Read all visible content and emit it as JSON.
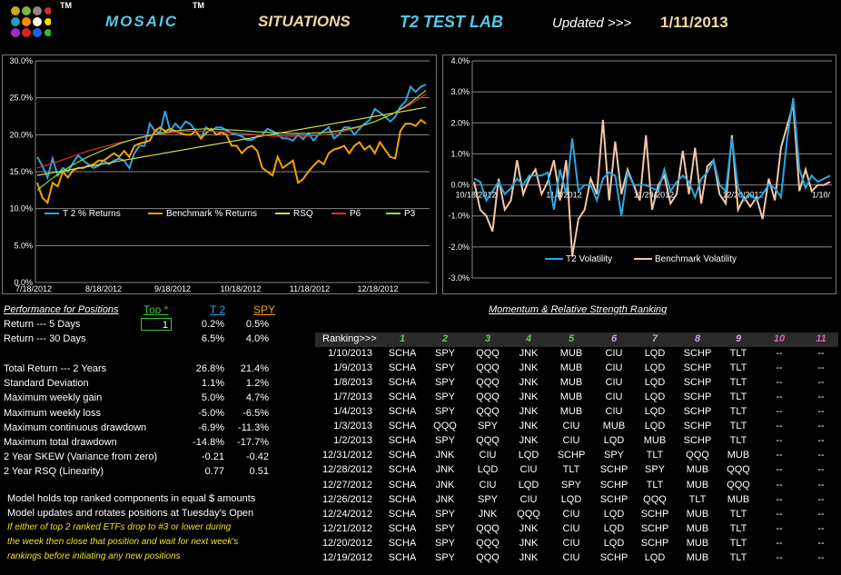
{
  "header": {
    "logo_tm": "TM",
    "title": "MOSAIC",
    "title_tm": "TM",
    "situations": "SITUATIONS",
    "lab": "T2 TEST LAB",
    "updated_label": "Updated >>>",
    "updated_date": "1/11/2013"
  },
  "colors": {
    "t2": "#29a8e0",
    "benchmark": "#f4a300",
    "rsq": "#d8d84a",
    "p6": "#e03030",
    "p3": "#90e040",
    "t2_vol": "#29a8e0",
    "bench_vol": "#f2c8a8",
    "title_mosaic": "#55c8e8",
    "title_situations": "#f5d8a0",
    "title_lab": "#55c8e8",
    "updated_date": "#f5d8a0"
  },
  "chart_data": [
    {
      "type": "line",
      "ylim": [
        0,
        30
      ],
      "yticks": [
        "0.0%",
        "5.0%",
        "10.0%",
        "15.0%",
        "20.0%",
        "25.0%",
        "30.0%"
      ],
      "xticks": [
        "7/18/2012",
        "8/18/2012",
        "9/18/2012",
        "10/18/2012",
        "11/18/2012",
        "12/18/2012"
      ],
      "grid": true,
      "legend": "bottom",
      "series": [
        {
          "name": "T 2 % Returns",
          "values": [
            17,
            15.8,
            14.2,
            16.8,
            14.5,
            15.5,
            15,
            16.2,
            17.2,
            16.5,
            16,
            15.5,
            15.8,
            16.5,
            16,
            16.5,
            16.8,
            16.5,
            15.5,
            17.5,
            18.5,
            18.5,
            21.5,
            20.5,
            20.3,
            23.2,
            20.5,
            21.5,
            20.8,
            21.8,
            21.4,
            20.5,
            19.5,
            21,
            20.5,
            21,
            21,
            20.6,
            20.2,
            20,
            19.8,
            19.3,
            19.3,
            19.8,
            20,
            20.8,
            20.5,
            20,
            19.5,
            19.5,
            19.2,
            20,
            19.4,
            20.2,
            19.2,
            20,
            20.5,
            21,
            19.5,
            20,
            21,
            21,
            20,
            20.8,
            21.5,
            22,
            23.5,
            23,
            22.5,
            21.8,
            22.4,
            23.8,
            24.5,
            26.5,
            25.8,
            26.5,
            26.8
          ]
        },
        {
          "name": "Benchmark % Returns",
          "values": [
            13.5,
            11.5,
            10.8,
            13.5,
            13,
            15,
            14.2,
            15.2,
            15.5,
            15.5,
            15.8,
            16,
            16.5,
            16.5,
            17,
            17.5,
            17,
            17.8,
            17,
            18.5,
            18.8,
            19,
            19.2,
            20.5,
            21,
            20.5,
            20.8,
            20.5,
            20.2,
            20,
            20,
            20.5,
            19.5,
            20.2,
            20.8,
            20,
            20.3,
            20,
            18.5,
            18.5,
            17.5,
            18.2,
            18.5,
            17.8,
            15.5,
            15,
            14.5,
            17,
            15.5,
            16,
            16.5,
            13.5,
            14,
            15,
            15.8,
            16.5,
            16,
            17.5,
            18,
            18.2,
            18.5,
            17.5,
            18.5,
            19,
            18,
            18.5,
            17.5,
            19,
            18,
            17,
            16.8,
            20.5,
            21.5,
            21.5,
            21.2,
            22,
            21.5
          ]
        },
        {
          "name": "RSQ",
          "values": [
            14.5,
            14.9,
            15.3,
            15.7,
            16.1,
            16.5,
            16.9,
            17.3,
            17.7,
            18.1,
            18.5,
            18.9,
            19.3,
            19.7,
            20.1,
            20.5,
            20.9,
            21.3,
            21.7,
            22.1,
            22.5,
            22.9,
            23.3,
            23.7
          ]
        },
        {
          "name": "P6",
          "values": [
            15.5,
            16.2,
            17,
            17.8,
            18.4,
            19,
            19.5,
            20,
            20.3,
            20.5,
            20.5,
            20.4,
            20.2,
            20,
            19.8,
            19.8,
            19.8,
            20,
            20.4,
            21,
            21.8,
            22.8,
            24,
            25.5
          ]
        },
        {
          "name": "P3",
          "values": [
            12.5,
            14.3,
            15.8,
            17,
            18,
            18.9,
            19.6,
            20.1,
            20.5,
            20.7,
            20.8,
            20.7,
            20.6,
            20.4,
            20.3,
            20.2,
            20.2,
            20.3,
            20.6,
            21.1,
            21.8,
            22.8,
            24.2,
            26
          ]
        }
      ]
    },
    {
      "type": "line",
      "ylim": [
        -3,
        4
      ],
      "yticks": [
        "-3.0%",
        "-2.0%",
        "-1.0%",
        "0.0%",
        "1.0%",
        "2.0%",
        "3.0%",
        "4.0%"
      ],
      "xticks": [
        "10/18/2012",
        "11/8/2012",
        "11/29/2012",
        "12/20/2012",
        "1/10/"
      ],
      "grid": true,
      "legend": "bottom",
      "series": [
        {
          "name": "T2 Volatility",
          "values": [
            0.2,
            0.1,
            -0.5,
            -0.2,
            0.1,
            -0.3,
            -0.1,
            0.2,
            0,
            0.3,
            0.3,
            0.3,
            0.4,
            -0.8,
            0.5,
            -0.3,
            1.5,
            -0.2,
            0,
            0,
            -0.5,
            0.2,
            0.4,
            0.3,
            -1,
            0.4,
            0,
            0,
            0,
            -0.1,
            -0.2,
            0.5,
            -0.2,
            0.1,
            0.3,
            0.1,
            -0.4,
            0.2,
            0.4,
            0.8,
            0,
            -0.2,
            1.5,
            -0.1,
            -0.5,
            -0.3,
            -0.5,
            -0.3,
            0,
            -0.1,
            -0.4,
            1.5,
            2.8,
            0.5,
            -0.1,
            0.3,
            0.1,
            0.2,
            0.3
          ]
        },
        {
          "name": "Benchmark Volatility",
          "values": [
            0.1,
            -0.8,
            -1,
            -1.5,
            0.2,
            -0.8,
            -0.5,
            0.8,
            -0.3,
            0.2,
            0.5,
            -0.3,
            0.1,
            0.8,
            -0.5,
            0.8,
            -2.3,
            -1.1,
            -0.8,
            0.2,
            -0.3,
            2.1,
            -0.5,
            1.4,
            -0.3,
            0.5,
            0,
            -0.5,
            1.6,
            -0.8,
            0,
            0.3,
            -0.6,
            -0.3,
            1.1,
            -0.3,
            1.2,
            -0.6,
            0.6,
            0.8,
            -0.3,
            -0.6,
            1.6,
            -0.8,
            -0.4,
            -0.7,
            -0.4,
            -1.1,
            0.2,
            -0.5,
            1.2,
            1.9,
            2.6,
            -0.2,
            0.5,
            -0.2,
            0,
            0,
            0.1
          ]
        }
      ]
    }
  ],
  "performance": {
    "heading": "Performance for Positions",
    "top_label": "Top *",
    "t2_label": "T 2",
    "spy_label": "SPY",
    "top_value": "1",
    "rows_short": [
      {
        "label": "Return --- 5 Days",
        "t2": "0.2%",
        "spy": "0.5%"
      },
      {
        "label": "Return --- 30 Days",
        "t2": "6.5%",
        "spy": "4.0%"
      }
    ],
    "rows": [
      {
        "label": "Total Return --- 2 Years",
        "t2": "26.8%",
        "spy": "21.4%"
      },
      {
        "label": "Standard Deviation",
        "t2": "1.1%",
        "spy": "1.2%"
      },
      {
        "label": "Maximum weekly gain",
        "t2": "5.0%",
        "spy": "4.7%"
      },
      {
        "label": "Maximum weekly loss",
        "t2": "-5.0%",
        "spy": "-6.5%"
      },
      {
        "label": "Maximum continuous drawdown",
        "t2": "-6.9%",
        "spy": "-11.3%"
      },
      {
        "label": "Maximum total drawdown",
        "t2": "-14.8%",
        "spy": "-17.7%"
      },
      {
        "label": "2 Year SKEW  (Variance from zero)",
        "t2": "-0.21",
        "spy": "-0.42"
      },
      {
        "label": "2 Year RSQ  (Linearity)",
        "t2": "0.77",
        "spy": "0.51"
      }
    ],
    "notes": [
      "Model holds top ranked  components in equal  $ amounts",
      "Model updates and rotates positions at Tuesday's Open"
    ],
    "warnings": [
      "If either of top 2 ranked ETFs drop to #3 or lower during",
      "the week then close that position and wait for next week's",
      "rankings before initiating any new positions"
    ]
  },
  "ranking": {
    "heading": "Momentum & Relative Strength Ranking",
    "label": "Ranking>>>",
    "columns": [
      "1",
      "2",
      "3",
      "4",
      "5",
      "6",
      "7",
      "8",
      "9",
      "10",
      "11"
    ],
    "column_colors": [
      "#5ec85e",
      "#5ec85e",
      "#5ec85e",
      "#5ec85e",
      "#5ec85e",
      "#c8a0e8",
      "#c8a0e8",
      "#c8a0e8",
      "#c8a0e8",
      "#e060b0",
      "#e060b0"
    ],
    "rows": [
      {
        "date": "1/10/2013",
        "cells": [
          "SCHA",
          "SPY",
          "QQQ",
          "JNK",
          "MUB",
          "CIU",
          "LQD",
          "SCHP",
          "TLT",
          "--",
          "--"
        ]
      },
      {
        "date": "1/9/2013",
        "cells": [
          "SCHA",
          "SPY",
          "QQQ",
          "JNK",
          "MUB",
          "CIU",
          "LQD",
          "SCHP",
          "TLT",
          "--",
          "--"
        ]
      },
      {
        "date": "1/8/2013",
        "cells": [
          "SCHA",
          "SPY",
          "QQQ",
          "JNK",
          "MUB",
          "CIU",
          "LQD",
          "SCHP",
          "TLT",
          "--",
          "--"
        ]
      },
      {
        "date": "1/7/2013",
        "cells": [
          "SCHA",
          "SPY",
          "QQQ",
          "JNK",
          "MUB",
          "CIU",
          "LQD",
          "SCHP",
          "TLT",
          "--",
          "--"
        ]
      },
      {
        "date": "1/4/2013",
        "cells": [
          "SCHA",
          "SPY",
          "QQQ",
          "JNK",
          "MUB",
          "CIU",
          "LQD",
          "SCHP",
          "TLT",
          "--",
          "--"
        ]
      },
      {
        "date": "1/3/2013",
        "cells": [
          "SCHA",
          "QQQ",
          "SPY",
          "JNK",
          "CIU",
          "MUB",
          "LQD",
          "SCHP",
          "TLT",
          "--",
          "--"
        ]
      },
      {
        "date": "1/2/2013",
        "cells": [
          "SCHA",
          "SPY",
          "QQQ",
          "JNK",
          "CIU",
          "LQD",
          "MUB",
          "SCHP",
          "TLT",
          "--",
          "--"
        ]
      },
      {
        "date": "12/31/2012",
        "cells": [
          "SCHA",
          "JNK",
          "CIU",
          "LQD",
          "SCHP",
          "SPY",
          "TLT",
          "QQQ",
          "MUB",
          "--",
          "--"
        ]
      },
      {
        "date": "12/28/2012",
        "cells": [
          "SCHA",
          "JNK",
          "LQD",
          "CIU",
          "TLT",
          "SCHP",
          "SPY",
          "MUB",
          "QQQ",
          "--",
          "--"
        ]
      },
      {
        "date": "12/27/2012",
        "cells": [
          "SCHA",
          "JNK",
          "CIU",
          "LQD",
          "SPY",
          "SCHP",
          "TLT",
          "MUB",
          "QQQ",
          "--",
          "--"
        ]
      },
      {
        "date": "12/26/2012",
        "cells": [
          "SCHA",
          "JNK",
          "SPY",
          "CIU",
          "LQD",
          "SCHP",
          "QQQ",
          "TLT",
          "MUB",
          "--",
          "--"
        ]
      },
      {
        "date": "12/24/2012",
        "cells": [
          "SCHA",
          "SPY",
          "JNK",
          "QQQ",
          "CIU",
          "LQD",
          "SCHP",
          "MUB",
          "TLT",
          "--",
          "--"
        ]
      },
      {
        "date": "12/21/2012",
        "cells": [
          "SCHA",
          "SPY",
          "QQQ",
          "JNK",
          "CIU",
          "LQD",
          "SCHP",
          "MUB",
          "TLT",
          "--",
          "--"
        ]
      },
      {
        "date": "12/20/2012",
        "cells": [
          "SCHA",
          "SPY",
          "QQQ",
          "JNK",
          "CIU",
          "LQD",
          "SCHP",
          "MUB",
          "TLT",
          "--",
          "--"
        ]
      },
      {
        "date": "12/19/2012",
        "cells": [
          "SCHA",
          "SPY",
          "QQQ",
          "JNK",
          "CIU",
          "SCHP",
          "LQD",
          "MUB",
          "TLT",
          "--",
          "--"
        ]
      }
    ]
  }
}
